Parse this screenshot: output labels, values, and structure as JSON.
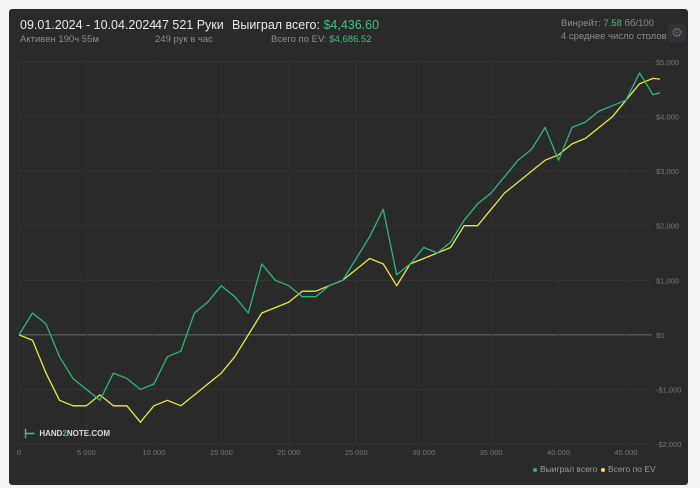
{
  "header": {
    "date_range": "09.01.2024 - 10.04.2024",
    "active": "Активен 190ч 55м",
    "hands": "47 521 Руки",
    "hands_per_hour": "249 рук в час",
    "won_label": "Выиграл всего:",
    "won_value": "$4,436.60",
    "ev_label": "Всего по EV:",
    "ev_value": "$4,686.52",
    "winrate_label": "Винрейт:",
    "winrate_value": "7.58",
    "winrate_unit": "бб/100",
    "avg_tables": "4 среднее число столов",
    "settings_icon": "gear-icon"
  },
  "logo": {
    "text_a": "HAND",
    "text_b": "2",
    "text_c": "NOTE.COM"
  },
  "chart_data": {
    "type": "line",
    "title": "",
    "xlabel": "",
    "ylabel": "",
    "xlim": [
      0,
      47521
    ],
    "ylim": [
      -2000,
      5000
    ],
    "x_ticks": [
      0,
      5000,
      10000,
      15000,
      20000,
      25000,
      30000,
      35000,
      40000,
      45000
    ],
    "x_tick_labels": [
      "0",
      "5 000",
      "10 000",
      "15 000",
      "20 000",
      "25 000",
      "30 000",
      "35 000",
      "40 000",
      "45 000"
    ],
    "y_ticks": [
      5000,
      4000,
      3000,
      2000,
      1000,
      0,
      -1000,
      -2000
    ],
    "y_tick_labels": [
      "$5,000",
      "$4,000",
      "$3,000",
      "$2,000",
      "$1,000",
      "$0",
      "-$1,000",
      "-$2,000"
    ],
    "legend_position": "bottom-right",
    "x": [
      0,
      1000,
      2000,
      3000,
      4000,
      5000,
      6000,
      7000,
      8000,
      9000,
      10000,
      11000,
      12000,
      13000,
      14000,
      15000,
      16000,
      17000,
      18000,
      19000,
      20000,
      21000,
      22000,
      23000,
      24000,
      25000,
      26000,
      27000,
      28000,
      29000,
      30000,
      31000,
      32000,
      33000,
      34000,
      35000,
      36000,
      37000,
      38000,
      39000,
      40000,
      41000,
      42000,
      43000,
      44000,
      45000,
      46000,
      47000,
      47521
    ],
    "series": [
      {
        "name": "Выиграл всего",
        "color": "#2fb57c",
        "values": [
          0,
          400,
          200,
          -400,
          -800,
          -1000,
          -1200,
          -700,
          -800,
          -1000,
          -900,
          -400,
          -300,
          400,
          600,
          900,
          700,
          400,
          1300,
          1000,
          900,
          700,
          700,
          900,
          1000,
          1400,
          1800,
          2300,
          1100,
          1300,
          1600,
          1500,
          1700,
          2100,
          2400,
          2600,
          2900,
          3200,
          3400,
          3800,
          3200,
          3800,
          3900,
          4100,
          4200,
          4300,
          4800,
          4400,
          4437
        ]
      },
      {
        "name": "Всего по EV",
        "color": "#e9e93c",
        "values": [
          0,
          -100,
          -700,
          -1200,
          -1300,
          -1300,
          -1100,
          -1300,
          -1300,
          -1600,
          -1300,
          -1200,
          -1300,
          -1100,
          -900,
          -700,
          -400,
          0,
          400,
          500,
          600,
          800,
          800,
          900,
          1000,
          1200,
          1400,
          1300,
          900,
          1300,
          1400,
          1500,
          1600,
          2000,
          2000,
          2300,
          2600,
          2800,
          3000,
          3200,
          3300,
          3500,
          3600,
          3800,
          4000,
          4300,
          4600,
          4700,
          4687
        ]
      }
    ]
  }
}
